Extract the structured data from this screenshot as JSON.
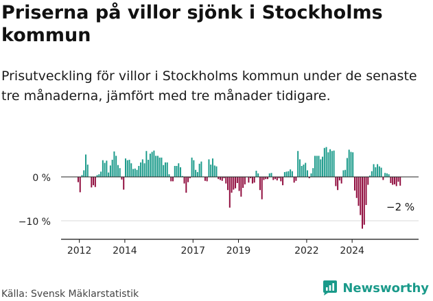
{
  "title": "Priserna på villor sjönk i Stockholms kommun",
  "subtitle": "Prisutveckling för villor i Stockholms kommun under de senaste tre månaderna, jämfört med tre månader tidigare.",
  "source": "Källa: Svensk Mäklarstatistik",
  "brand": "Newsworthy",
  "colors": {
    "positive": "#1a9a8a",
    "negative": "#8f0a3c",
    "grid": "#d8d8d8",
    "brand": "#1a9a8a"
  },
  "chart_data": {
    "type": "bar",
    "title": "Priserna på villor sjönk i Stockholms kommun",
    "xlabel": "",
    "ylabel": "",
    "unit": "%",
    "ylim": [
      -14,
      8
    ],
    "y_ticks": [
      0,
      -10
    ],
    "y_tick_labels": [
      "0 %",
      "−10 %"
    ],
    "x_tick_labels": [
      "2012",
      "2014",
      "2017",
      "2019",
      "2022",
      "2024"
    ],
    "x_tick_positions": [
      2012.0,
      2014.0,
      2017.0,
      2019.0,
      2022.0,
      2024.0
    ],
    "start": 2011.92,
    "step": 0.08333,
    "last_value_label": "−2 %",
    "values": [
      -1.2,
      -3.5,
      0.4,
      1.5,
      5.1,
      2.8,
      0,
      -2.4,
      -1.9,
      -2.3,
      0.4,
      0.6,
      1.2,
      3.8,
      3.2,
      3.7,
      1.0,
      2.6,
      3.9,
      5.8,
      4.8,
      2.7,
      2.0,
      -0.6,
      -2.9,
      4.2,
      3.8,
      3.9,
      3.1,
      1.8,
      1.9,
      1.6,
      2.5,
      3.3,
      4.0,
      3.1,
      5.9,
      3.9,
      5.3,
      5.7,
      6.0,
      4.8,
      4.8,
      4.4,
      4.4,
      2.7,
      3.3,
      3.3,
      0.6,
      -1.0,
      -1.0,
      2.5,
      2.5,
      3.1,
      2.2,
      0.2,
      -1.5,
      -3.6,
      -1.2,
      -0.3,
      4.4,
      3.8,
      1.6,
      1.1,
      3.0,
      3.5,
      0.1,
      -0.9,
      -1.0,
      4.0,
      2.8,
      4.2,
      2.6,
      2.4,
      -0.5,
      -0.7,
      -0.9,
      -0.3,
      -1.5,
      -3.0,
      -7.0,
      -3.6,
      -2.9,
      -2.6,
      -1.4,
      -3.2,
      -4.5,
      -2.5,
      -1.7,
      -0.1,
      -1.3,
      -0.3,
      -1.5,
      -1.3,
      1.4,
      0.8,
      -3.0,
      -5.1,
      -0.7,
      -0.5,
      -0.5,
      0.8,
      0.9,
      -0.7,
      -0.5,
      -0.8,
      -0.3,
      -1.0,
      -1.9,
      1.1,
      1.2,
      1.3,
      1.7,
      1.3,
      -1.3,
      -0.9,
      5.9,
      4.0,
      2.5,
      2.8,
      3.2,
      1.5,
      -0.3,
      0.8,
      2.0,
      4.8,
      4.8,
      4.8,
      4.0,
      4.6,
      6.6,
      6.8,
      5.6,
      6.3,
      5.9,
      6.0,
      -2.1,
      -3.0,
      -0.8,
      -1.5,
      1.5,
      1.6,
      4.3,
      6.2,
      5.7,
      5.6,
      -3.1,
      -4.8,
      -6.6,
      -8.7,
      -11.8,
      -10.9,
      -6.4,
      -1.8,
      0.3,
      1.3,
      2.9,
      2.2,
      2.9,
      2.4,
      2.1,
      -0.7,
      0.9,
      0.8,
      0.6,
      -1.4,
      -1.8,
      -1.7,
      -2.1,
      -1.1,
      -2.0
    ]
  }
}
